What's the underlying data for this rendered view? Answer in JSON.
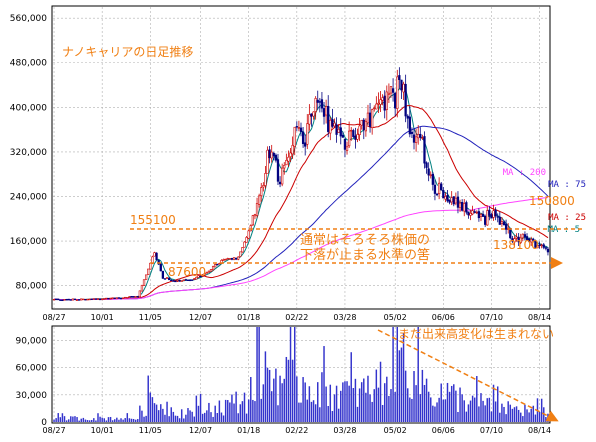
{
  "title": "ナノキャリアの日足推移",
  "colors": {
    "accent": "#f07f13",
    "candle_up": "#cc0000",
    "candle_down": "#00007f",
    "ma5": "#008080",
    "ma25": "#cc0000",
    "ma75": "#2222bb",
    "ma200": "#ff44ff",
    "volume": "#3333cc",
    "grid": "#b0b0b0"
  },
  "annotations": {
    "high_label": "155100",
    "low_label": "87600",
    "latest_high_label": "150800",
    "latest_low_label": "138100",
    "floor_text_line1": "通常はそろそろ株価の",
    "floor_text_line2": "下落が止まる水準の筈",
    "volume_text": "まだ出来高変化は生まれない"
  },
  "chart_data": [
    {
      "type": "candlestick",
      "title": "ナノキャリアの日足推移",
      "x_tick_labels": [
        "08/27",
        "10/01",
        "11/05",
        "12/07",
        "01/18",
        "02/22",
        "03/28",
        "05/02",
        "06/06",
        "07/10",
        "08/14"
      ],
      "y_tick_labels": [
        "80,000",
        "160,000",
        "240,000",
        "320,000",
        "400,000",
        "480,000",
        "560,000"
      ],
      "ylim": [
        40000,
        580000
      ],
      "grid": true,
      "moving_averages": [
        {
          "name": "MA : 200",
          "period": 200,
          "color": "#ff44ff"
        },
        {
          "name": "MA : 75",
          "period": 75,
          "color": "#2222bb"
        },
        {
          "name": "MA : 25",
          "period": 25,
          "color": "#cc0000"
        },
        {
          "name": "MA : 5",
          "period": 5,
          "color": "#008080"
        }
      ],
      "close_trend": {
        "x": [
          0,
          20,
          40,
          48,
          52,
          60,
          66,
          71,
          80,
          88,
          92,
          100,
          104,
          108,
          112,
          116,
          120,
          126,
          132,
          140,
          146,
          152,
          158,
          163,
          166,
          170,
          176,
          180,
          186,
          192,
          198,
          204,
          210,
          216,
          222,
          228,
          234,
          236
        ],
        "close": [
          55000,
          56000,
          60000,
          140000,
          95000,
          87600,
          92000,
          100000,
          125000,
          130000,
          165000,
          270000,
          340000,
          260000,
          330000,
          360000,
          340000,
          420000,
          360000,
          340000,
          360000,
          380000,
          420000,
          420000,
          450000,
          360000,
          330000,
          270000,
          240000,
          230000,
          220000,
          200000,
          205000,
          175000,
          165000,
          160000,
          146000,
          140000
        ]
      },
      "annotations": [
        "155100",
        "87600",
        "150800",
        "138100",
        "通常はそろそろ株価の",
        "下落が止まる水準の筈"
      ]
    },
    {
      "type": "bar",
      "title": "",
      "x_tick_labels": [
        "08/27",
        "10/01",
        "11/05",
        "12/07",
        "01/18",
        "02/22",
        "03/28",
        "05/02",
        "06/06",
        "07/10",
        "08/14"
      ],
      "y_tick_labels": [
        "0",
        "30,000",
        "60,000",
        "90,000"
      ],
      "ylim": [
        0,
        105000
      ],
      "grid": true,
      "volume_trend": {
        "x": [
          0,
          40,
          46,
          60,
          80,
          92,
          100,
          104,
          120,
          132,
          150,
          160,
          163,
          180,
          196,
          212,
          236
        ],
        "volume": [
          5000,
          5000,
          30000,
          12000,
          20000,
          30000,
          70000,
          60000,
          50000,
          40000,
          40000,
          60000,
          100000,
          40000,
          30000,
          20000,
          12000
        ]
      },
      "annotations": [
        "まだ出来高変化は生まれない"
      ]
    }
  ]
}
